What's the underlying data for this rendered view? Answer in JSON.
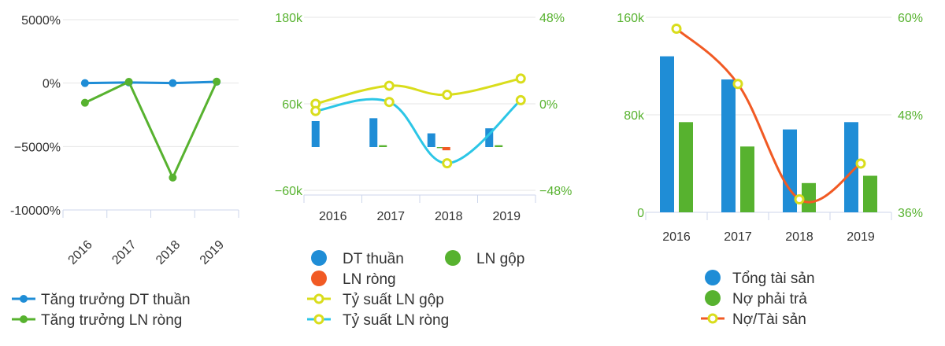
{
  "chart_data": [
    {
      "type": "line",
      "categories": [
        "2016",
        "2017",
        "2018",
        "2019"
      ],
      "y_ticks": [
        "5000%",
        "0%",
        "−5000%",
        "-10000%"
      ],
      "ylim": [
        -10000,
        5000
      ],
      "series": [
        {
          "name": "Tăng trưởng DT thuần",
          "values": [
            0,
            50,
            0,
            100
          ],
          "color": "#1f8dd6"
        },
        {
          "name": "Tăng trưởng LN ròng",
          "values": [
            -1550,
            100,
            -7450,
            120
          ],
          "color": "#57b22f"
        }
      ],
      "legend_position": "bottom-left",
      "grid": true
    },
    {
      "type": "bar",
      "categories": [
        "2016",
        "2017",
        "2018",
        "2019"
      ],
      "left_y_ticks": [
        "180k",
        "60k",
        "−60k"
      ],
      "right_y_ticks": [
        "48%",
        "0%",
        "−48%"
      ],
      "ylim_left": [
        -60000,
        180000
      ],
      "ylim_right": [
        -48,
        48
      ],
      "series": [
        {
          "name": "DT thuần",
          "kind": "bar",
          "axis": "left",
          "values": [
            36000,
            40000,
            19000,
            26000
          ],
          "color": "#1f8dd6"
        },
        {
          "name": "LN gộp",
          "kind": "bar",
          "axis": "left",
          "values": [
            0,
            2500,
            -1500,
            2500
          ],
          "color": "#57b22f"
        },
        {
          "name": "LN ròng",
          "kind": "bar",
          "axis": "left",
          "values": [
            0,
            0,
            -4500,
            0
          ],
          "color": "#f15a24"
        },
        {
          "name": "Tỷ suất LN gộp",
          "kind": "line",
          "axis": "right",
          "values": [
            0,
            10,
            5,
            14
          ],
          "color": "#d9dd1c"
        },
        {
          "name": "Tỷ suất LN ròng",
          "kind": "line",
          "axis": "right",
          "values": [
            -4,
            1,
            -33,
            2
          ],
          "color": "#2cc6e6"
        }
      ],
      "legend_position": "bottom",
      "grid": true
    },
    {
      "type": "bar",
      "categories": [
        "2016",
        "2017",
        "2018",
        "2019"
      ],
      "left_y_ticks": [
        "160k",
        "80k",
        "0"
      ],
      "right_y_ticks": [
        "60%",
        "48%",
        "36%"
      ],
      "ylim_left": [
        0,
        160000
      ],
      "ylim_right": [
        36,
        60
      ],
      "series": [
        {
          "name": "Tổng tài sản",
          "kind": "bar",
          "axis": "left",
          "values": [
            128000,
            109000,
            68000,
            74000
          ],
          "color": "#1f8dd6"
        },
        {
          "name": "Nợ phải trả",
          "kind": "bar",
          "axis": "left",
          "values": [
            74000,
            54000,
            24000,
            30000
          ],
          "color": "#57b22f"
        },
        {
          "name": "Nợ/Tài sản",
          "kind": "line",
          "axis": "right",
          "values": [
            58.6,
            51.8,
            37.6,
            42.0
          ],
          "color": "#f15a24"
        }
      ],
      "legend_position": "bottom",
      "grid": true
    }
  ]
}
